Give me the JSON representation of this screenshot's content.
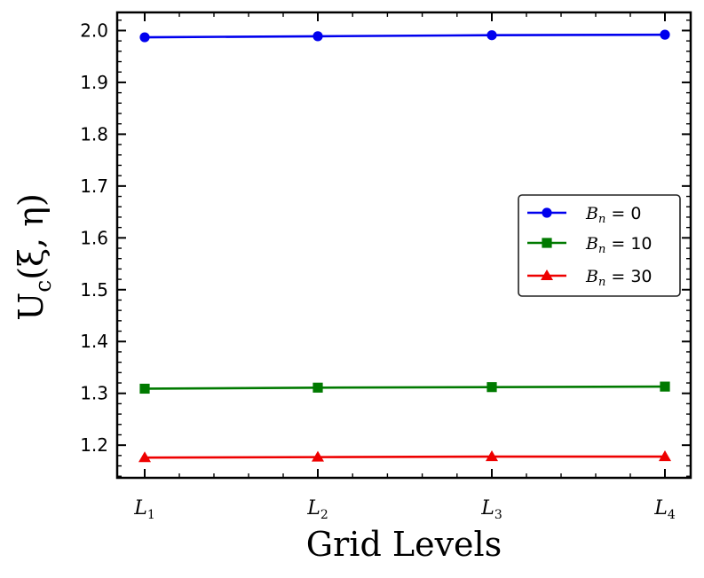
{
  "chart_data": {
    "type": "line",
    "title": "",
    "xlabel": "Grid Levels",
    "ylabel": "Uc(ξ, η)",
    "ylabel_main": "U",
    "ylabel_sub": "c",
    "ylabel_args": "(ξ, η)",
    "categories": [
      {
        "main": "L",
        "sub": "1"
      },
      {
        "main": "L",
        "sub": "2"
      },
      {
        "main": "L",
        "sub": "3"
      },
      {
        "main": "L",
        "sub": "4"
      }
    ],
    "ylim": [
      1.137,
      2.035
    ],
    "yticks": [
      1.2,
      1.3,
      1.4,
      1.5,
      1.6,
      1.7,
      1.8,
      1.9,
      2.0
    ],
    "ytick_labels": [
      "1.2",
      "1.3",
      "1.4",
      "1.5",
      "1.6",
      "1.7",
      "1.8",
      "1.9",
      "2.0"
    ],
    "legend_position": "center-right",
    "series": [
      {
        "name": "Bn = 0",
        "label_main": "B",
        "label_sub": "n",
        "label_rest": " = 0",
        "color": "#0000ee",
        "marker": "circle",
        "values": [
          1.987,
          1.989,
          1.991,
          1.992
        ]
      },
      {
        "name": "Bn = 10",
        "label_main": "B",
        "label_sub": "n",
        "label_rest": " = 10",
        "color": "#007a00",
        "marker": "square",
        "values": [
          1.309,
          1.311,
          1.312,
          1.313
        ]
      },
      {
        "name": "Bn = 30",
        "label_main": "B",
        "label_sub": "n",
        "label_rest": " = 30",
        "color": "#ee0000",
        "marker": "triangle",
        "values": [
          1.176,
          1.177,
          1.178,
          1.178
        ]
      }
    ]
  }
}
